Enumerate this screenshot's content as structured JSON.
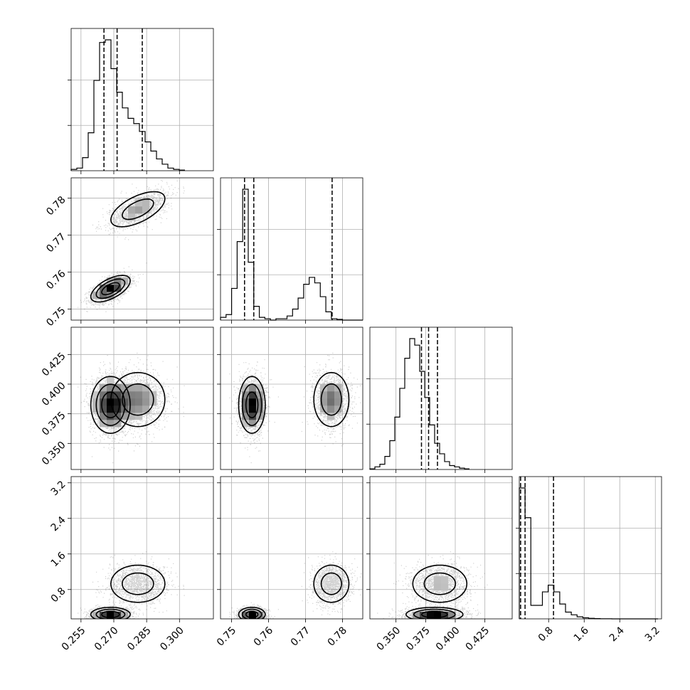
{
  "chart_data": {
    "type": "corner",
    "title": "",
    "parameters": [
      {
        "range": [
          0.2505,
          0.3155
        ],
        "ticks": [
          0.255,
          0.27,
          0.285,
          0.3
        ],
        "tick_labels": [
          "0.255",
          "0.270",
          "0.285",
          "0.300"
        ],
        "quantiles": [
          0.2655,
          0.2715,
          0.283
        ],
        "hist": {
          "edges_start": 0.2505,
          "bin_width": 0.0026,
          "counts": [
            0.01,
            0.02,
            0.1,
            0.29,
            0.69,
            0.98,
            1.0,
            0.78,
            0.6,
            0.48,
            0.4,
            0.36,
            0.3,
            0.22,
            0.15,
            0.09,
            0.05,
            0.02,
            0.01,
            0.005
          ]
        }
      },
      {
        "range": [
          0.747,
          0.7855
        ],
        "ticks": [
          0.75,
          0.76,
          0.77,
          0.78
        ],
        "tick_labels": [
          "0.75",
          "0.76",
          "0.77",
          "0.78"
        ],
        "quantiles": [
          0.7535,
          0.756,
          0.7772
        ],
        "hist": {
          "edges_start": 0.747,
          "bin_width": 0.0015,
          "counts": [
            0.02,
            0.04,
            0.23,
            0.57,
            0.95,
            0.42,
            0.1,
            0.02,
            0.01,
            0.0,
            0.01,
            0.01,
            0.03,
            0.08,
            0.16,
            0.26,
            0.31,
            0.27,
            0.17,
            0.06,
            0.01,
            0.005,
            0.0,
            0.0,
            0.0,
            0.0
          ]
        }
      },
      {
        "range": [
          0.328,
          0.448
        ],
        "ticks": [
          0.35,
          0.375,
          0.4,
          0.425
        ],
        "tick_labels": [
          "0.350",
          "0.375",
          "0.400",
          "0.425"
        ],
        "quantiles": [
          0.3715,
          0.3775,
          0.385
        ],
        "hist": {
          "edges_start": 0.328,
          "bin_width": 0.0042,
          "counts": [
            0.005,
            0.02,
            0.04,
            0.1,
            0.22,
            0.4,
            0.62,
            0.85,
            1.0,
            0.95,
            0.75,
            0.55,
            0.34,
            0.2,
            0.12,
            0.06,
            0.03,
            0.02,
            0.01,
            0.005
          ]
        }
      },
      {
        "range": [
          0.14,
          3.34
        ],
        "ticks": [
          0.8,
          1.6,
          2.4,
          3.2
        ],
        "tick_labels": [
          "0.8",
          "1.6",
          "2.4",
          "3.2"
        ],
        "quantiles": [
          0.17,
          0.27,
          0.91
        ],
        "hist": {
          "edges_start": 0.14,
          "bin_width": 0.13,
          "counts": [
            0.97,
            0.75,
            0.1,
            0.1,
            0.2,
            0.25,
            0.2,
            0.11,
            0.05,
            0.03,
            0.015,
            0.008,
            0.004,
            0.002,
            0.001,
            0.001,
            0.0,
            0.0,
            0.0,
            0.0,
            0.0,
            0.0,
            0.0,
            0.0
          ]
        }
      }
    ],
    "modes": [
      {
        "weight": 0.55,
        "mean": [
          0.2685,
          0.7555,
          0.3825,
          0.24
        ],
        "sd": [
          0.0045,
          0.0018,
          0.012,
          0.08
        ]
      },
      {
        "weight": 0.45,
        "mean": [
          0.281,
          0.777,
          0.387,
          0.93
        ],
        "sd": [
          0.0065,
          0.0025,
          0.012,
          0.22
        ]
      }
    ],
    "correlation": {
      "0-1": 0.6,
      "0-2": 0.0,
      "0-3": 0.0,
      "1-2": 0.0,
      "1-3": 0.0,
      "2-3": 0.0
    }
  }
}
